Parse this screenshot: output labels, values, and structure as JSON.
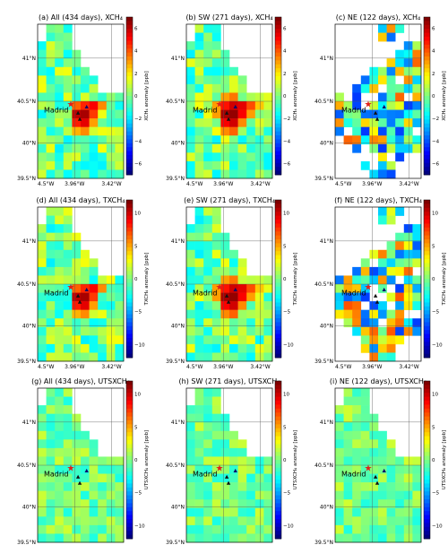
{
  "chart_data": {
    "type": "heatmap",
    "map": {
      "city_label": "Madrid",
      "lon_ticks": [
        "4.5°W",
        "3.96°W",
        "3.42°W"
      ],
      "lat_ticks": [
        "41°N",
        "40.5°N",
        "40°N",
        "39.5°N"
      ]
    },
    "colormap": "jet",
    "rows": [
      {
        "cbar_label": "XCH₄ anomaly [ppb]",
        "cbar_range": [
          -7,
          7
        ],
        "cbar_ticks": [
          "6",
          "4",
          "2",
          "0",
          "−2",
          "−4",
          "−6"
        ],
        "panels": [
          {
            "title": "(a) All (434 days), XCH₄",
            "pattern": "all"
          },
          {
            "title": "(b) SW (271 days), XCH₄",
            "pattern": "sw"
          },
          {
            "title": "(c) NE (122 days), XCH₄",
            "pattern": "ne"
          }
        ]
      },
      {
        "cbar_label": "TXCH₄ anomaly [ppb]",
        "cbar_range": [
          -12,
          12
        ],
        "cbar_ticks": [
          "10",
          "5",
          "0",
          "−5",
          "−10"
        ],
        "panels": [
          {
            "title": "(d) All (434 days), TXCH₄",
            "pattern": "all"
          },
          {
            "title": "(e) SW (271 days), TXCH₄",
            "pattern": "sw"
          },
          {
            "title": "(f) NE (122 days), TXCH₄",
            "pattern": "ne"
          }
        ]
      },
      {
        "cbar_label": "UTSXCH₄ anomaly [ppb]",
        "cbar_range": [
          -12,
          12
        ],
        "cbar_ticks": [
          "10",
          "5",
          "0",
          "−5",
          "−10"
        ],
        "panels": [
          {
            "title": "(g) All (434 days), UTSXCH₄",
            "pattern": "flat"
          },
          {
            "title": "(h) SW (271 days), UTSXCH₄",
            "pattern": "flat"
          },
          {
            "title": "(i) NE (122 days), UTSXCH₄",
            "pattern": "flat"
          }
        ]
      }
    ]
  }
}
